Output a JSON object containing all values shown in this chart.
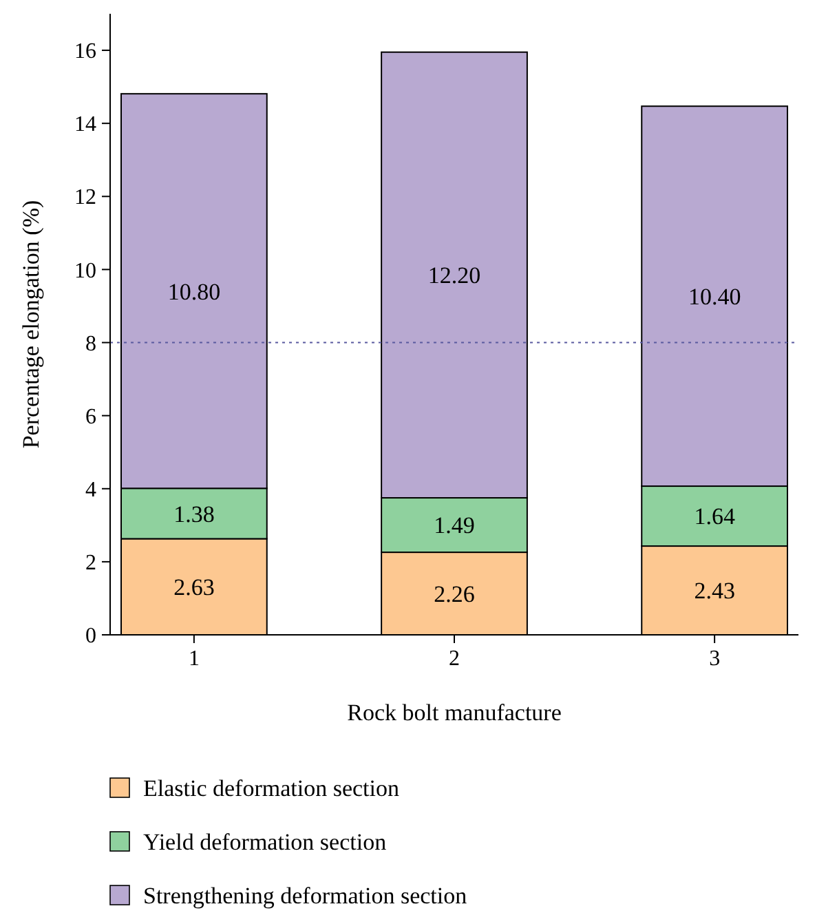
{
  "chart_data": {
    "type": "bar",
    "stacked": true,
    "xlabel": "Rock bolt manufacture",
    "ylabel": "Percentage elongation (%)",
    "categories": [
      "1",
      "2",
      "3"
    ],
    "series": [
      {
        "name": "Elastic deformation section",
        "color": "#fdc891",
        "values": [
          2.63,
          2.26,
          2.43
        ],
        "value_labels": [
          "2.63",
          "2.26",
          "2.43"
        ]
      },
      {
        "name": "Yield deformation section",
        "color": "#8fd19e",
        "values": [
          1.38,
          1.49,
          1.64
        ],
        "value_labels": [
          "1.38",
          "1.49",
          "1.64"
        ]
      },
      {
        "name": "Strengthening deformation section",
        "color": "#b8a9d1",
        "values": [
          10.8,
          12.2,
          10.4
        ],
        "value_labels": [
          "10.80",
          "12.20",
          "10.40"
        ]
      }
    ],
    "ylim": [
      0,
      17
    ],
    "yticks": [
      0,
      2,
      4,
      6,
      8,
      10,
      12,
      14,
      16
    ],
    "ref_lines": [
      {
        "axis": "y",
        "value": 8,
        "color": "#5a5aa0",
        "line_style": "dotted"
      }
    ],
    "grid": false,
    "legend": "bottom"
  }
}
